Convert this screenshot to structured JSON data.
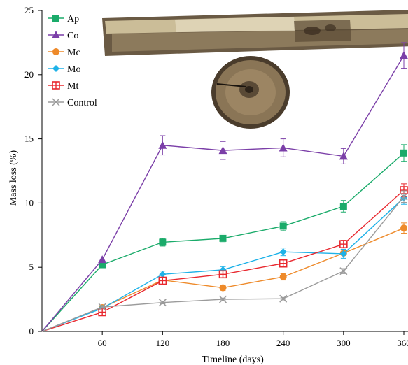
{
  "chart_data": {
    "type": "line",
    "xlabel": "Timeline (days)",
    "ylabel": "Mass loss (%)",
    "x": [
      0,
      60,
      120,
      180,
      240,
      300,
      360
    ],
    "x_tick_labels": [
      "60",
      "120",
      "180",
      "240",
      "300",
      "360"
    ],
    "y_tick_labels": [
      "0",
      "5",
      "10",
      "15",
      "20",
      "25"
    ],
    "xlim": [
      0,
      360
    ],
    "ylim": [
      0,
      25
    ],
    "grid": false,
    "legend_position": "top-left",
    "series": [
      {
        "name": "Ap",
        "marker": "square",
        "color": "#1aab6a",
        "values": [
          0,
          5.2,
          6.95,
          7.25,
          8.2,
          9.75,
          13.9
        ],
        "errors": [
          0,
          0.2,
          0.3,
          0.35,
          0.35,
          0.45,
          0.65
        ]
      },
      {
        "name": "Co",
        "marker": "triangle",
        "color": "#7b3fa8",
        "values": [
          0,
          5.6,
          14.5,
          14.1,
          14.3,
          13.65,
          21.5
        ],
        "errors": [
          0,
          0.2,
          0.75,
          0.7,
          0.7,
          0.6,
          1.0
        ]
      },
      {
        "name": "Mc",
        "marker": "circle",
        "color": "#ee8a2a",
        "values": [
          0,
          1.85,
          4.0,
          3.4,
          4.25,
          6.1,
          8.05
        ],
        "errors": [
          0,
          0.1,
          0.2,
          0.2,
          0.25,
          0.3,
          0.4
        ]
      },
      {
        "name": "Mo",
        "marker": "diamond",
        "color": "#1eb2e8",
        "values": [
          0,
          1.8,
          4.45,
          4.8,
          6.2,
          6.05,
          10.4
        ],
        "errors": [
          0,
          0.1,
          0.25,
          0.25,
          0.3,
          0.35,
          0.5
        ]
      },
      {
        "name": "Mt",
        "marker": "crosssquare",
        "color": "#e8282f",
        "values": [
          0,
          1.5,
          3.95,
          4.45,
          5.3,
          6.8,
          11.0
        ],
        "errors": [
          0,
          0.1,
          0.2,
          0.25,
          0.25,
          0.3,
          0.5
        ]
      },
      {
        "name": "Control",
        "marker": "x",
        "color": "#9b9b9b",
        "values": [
          0,
          1.9,
          2.25,
          2.5,
          2.55,
          4.7,
          10.5
        ],
        "errors": [
          0,
          0.1,
          0.1,
          0.1,
          0.1,
          0.2,
          0.45
        ]
      }
    ]
  }
}
